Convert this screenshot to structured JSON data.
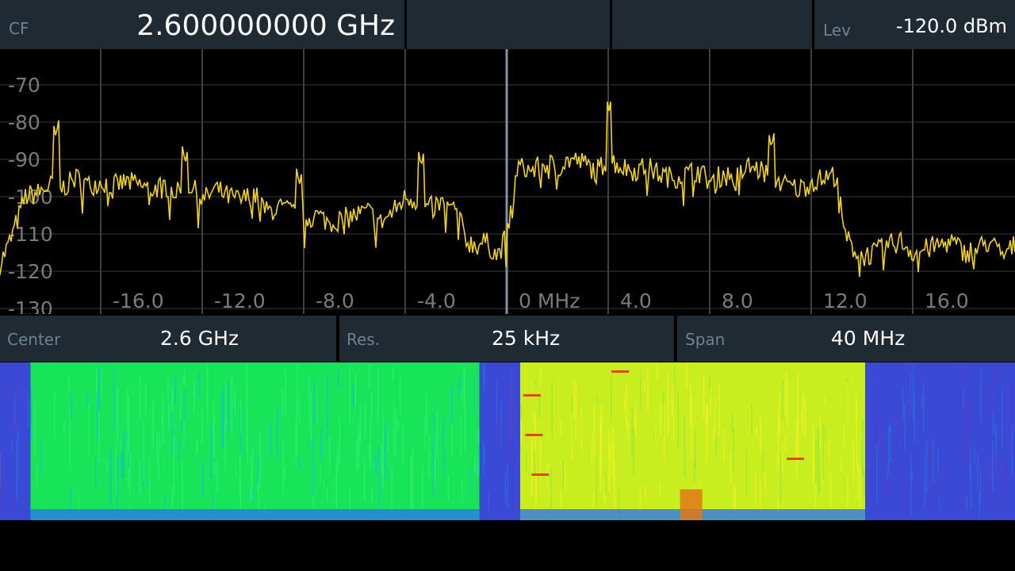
{
  "header": {
    "cf_label": "CF",
    "cf_value": "2.600000000 GHz",
    "lev_label": "Lev",
    "lev_value": "-120.0 dBm"
  },
  "status": {
    "center_label": "Center",
    "center_value": "2.6 GHz",
    "res_label": "Res.",
    "res_value": "25 kHz",
    "span_label": "Span",
    "span_value": "40 MHz"
  },
  "chart_data": {
    "type": "line",
    "x_ticks": [
      "-16.0",
      "-12.0",
      "-8.0",
      "-4.0",
      "0 MHz",
      "4.0",
      "8.0",
      "12.0",
      "16.0"
    ],
    "x_tick_values": [
      -16,
      -12,
      -8,
      -4,
      0,
      4,
      8,
      12,
      16
    ],
    "y_ticks": [
      "-70",
      "-80",
      "-90",
      "-100",
      "-110",
      "-120",
      "-130"
    ],
    "y_tick_values": [
      -70,
      -80,
      -90,
      -100,
      -110,
      -120,
      -130
    ],
    "xlim": [
      -20,
      20
    ],
    "ylim": [
      -130,
      -65
    ],
    "grid": true,
    "series": [
      {
        "color": "#f2d21b",
        "x": [
          -20,
          -19.6,
          -19,
          -18.5,
          -18,
          -17.6,
          -17,
          -16.5,
          -16,
          -15.5,
          -15,
          -14.5,
          -14,
          -13.5,
          -13,
          -12.5,
          -12,
          -11.5,
          -11,
          -10.5,
          -10,
          -9.5,
          -9,
          -8.5,
          -8,
          -7.5,
          -7,
          -6.5,
          -6,
          -5.5,
          -5,
          -4.5,
          -4,
          -3.6,
          -3.2,
          -2.6,
          -2,
          -1.6,
          -1.2,
          -0.9,
          -0.6,
          -0.4,
          0,
          0.4,
          1,
          1.5,
          2,
          2.5,
          3,
          3.5,
          4,
          4.5,
          5,
          5.5,
          6,
          6.5,
          7,
          7.5,
          8,
          8.5,
          9,
          9.5,
          10,
          10.5,
          11,
          11.5,
          12,
          12.5,
          13,
          13.2,
          13.5,
          14,
          14.5,
          15,
          15.5,
          16,
          16.5,
          17,
          17.5,
          18,
          18.5,
          19,
          19.5,
          20
        ],
        "y": [
          -118,
          -112,
          -100,
          -99,
          -97,
          -98,
          -95,
          -97,
          -96,
          -97,
          -96,
          -97,
          -98,
          -97,
          -99,
          -97,
          -101,
          -98,
          -100,
          -101,
          -99,
          -104,
          -103,
          -104,
          -106,
          -105,
          -107,
          -106,
          -105,
          -104,
          -107,
          -104,
          -100,
          -101,
          -103,
          -102,
          -104,
          -112,
          -113,
          -112,
          -114,
          -116,
          -110,
          -92,
          -93,
          -91,
          -92,
          -90,
          -91,
          -93,
          -90,
          -92,
          -93,
          -92,
          -94,
          -95,
          -94,
          -93,
          -96,
          -94,
          -95,
          -92,
          -93,
          -95,
          -97,
          -98,
          -96,
          -95,
          -94,
          -108,
          -113,
          -116,
          -115,
          -113,
          -112,
          -115,
          -114,
          -113,
          -112,
          -115,
          -114,
          -112,
          -116,
          -113
        ]
      }
    ],
    "peaks": [
      {
        "x": -17.8,
        "y": -84
      },
      {
        "x": -12.7,
        "y": -91
      },
      {
        "x": -8.2,
        "y": -97
      },
      {
        "x": -3.4,
        "y": -92
      },
      {
        "x": 4.0,
        "y": -77
      },
      {
        "x": 10.4,
        "y": -87
      }
    ],
    "marker_x": 0
  },
  "waterfall": {
    "colors": [
      "#3a49d6",
      "#1aa0f0",
      "#18e45a",
      "#c8ee20",
      "#f0f020",
      "#e04818"
    ],
    "bands": [
      {
        "from": -20,
        "to": -18.8,
        "level": 0
      },
      {
        "from": -18.8,
        "to": -1.1,
        "level": 2
      },
      {
        "from": -1.1,
        "to": 0.5,
        "level": 0
      },
      {
        "from": 0.5,
        "to": 14.1,
        "level": 3
      },
      {
        "from": 14.1,
        "to": 20,
        "level": 0
      }
    ]
  }
}
